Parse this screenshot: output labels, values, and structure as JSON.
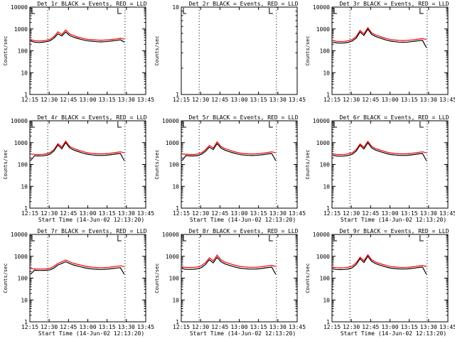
{
  "chart_data": [
    {
      "type": "line",
      "title": "Det 1r BLACK = Events, RED = LLD",
      "has_data": true,
      "profile": "A",
      "ylabel": "Counts/sec",
      "xlabel": "",
      "x_ticks": [
        "12:15",
        "12:30",
        "12:45",
        "13:00",
        "13:15",
        "13:30",
        "13:45"
      ],
      "y_ticks": [
        "1",
        "10",
        "100",
        "1000",
        "10000"
      ],
      "ylim": [
        1,
        10000
      ],
      "yscale": "log",
      "markers_after_ticks": [
        1,
        5
      ],
      "series": [
        {
          "color": "#000000",
          "values": [
            280,
            250,
            240,
            245,
            260,
            290,
            380,
            600,
            480,
            720,
            500,
            420,
            370,
            330,
            300,
            280,
            270,
            260,
            255,
            260,
            270,
            285,
            300,
            320,
            250
          ]
        },
        {
          "color": "#ff0000",
          "values": [
            330,
            290,
            280,
            285,
            300,
            340,
            450,
            740,
            560,
            900,
            600,
            500,
            430,
            390,
            350,
            330,
            320,
            310,
            305,
            310,
            320,
            335,
            350,
            375,
            340
          ]
        }
      ]
    },
    {
      "type": "line",
      "title": "Det 2r BLACK = Events, RED = LLD",
      "has_data": false,
      "profile": "none",
      "ylabel": "Counts/sec",
      "xlabel": "",
      "x_ticks": [
        "12:15",
        "12:30",
        "12:45",
        "13:00",
        "13:15",
        "13:30",
        "13:45"
      ],
      "y_ticks": [
        "1",
        "10"
      ],
      "ylim": [
        1,
        10
      ],
      "yscale": "log",
      "markers_after_ticks": [
        1,
        5
      ],
      "series": []
    },
    {
      "type": "line",
      "title": "Det 3r BLACK = Events, RED = LLD",
      "has_data": true,
      "profile": "A",
      "ylabel": "Counts/sec",
      "xlabel": "",
      "x_ticks": [
        "12:15",
        "12:30",
        "12:45",
        "13:00",
        "13:15",
        "13:30",
        "13:45"
      ],
      "y_ticks": [
        "1",
        "10",
        "100",
        "1000",
        "10000"
      ],
      "ylim": [
        1,
        10000
      ],
      "yscale": "log",
      "markers_after_ticks": [
        1,
        5
      ],
      "series": [
        {
          "color": "#000000",
          "values": [
            250,
            230,
            225,
            230,
            245,
            280,
            380,
            720,
            500,
            980,
            560,
            450,
            390,
            340,
            300,
            275,
            260,
            250,
            245,
            250,
            260,
            275,
            290,
            300,
            140
          ]
        },
        {
          "color": "#ff0000",
          "values": [
            300,
            270,
            265,
            270,
            290,
            330,
            450,
            860,
            600,
            1150,
            660,
            530,
            460,
            400,
            355,
            325,
            310,
            300,
            295,
            300,
            310,
            325,
            345,
            360,
            330
          ]
        }
      ]
    },
    {
      "type": "line",
      "title": "Det 4r BLACK = Events, RED = LLD",
      "has_data": true,
      "profile": "A",
      "ylabel": "Counts/sec",
      "xlabel": "Start Time (14-Jun-02 12:13:20)",
      "x_ticks": [
        "12:15",
        "12:30",
        "12:45",
        "13:00",
        "13:15",
        "13:30",
        "13:45"
      ],
      "y_ticks": [
        "1",
        "10",
        "100",
        "1000",
        "10000"
      ],
      "ylim": [
        1,
        10000
      ],
      "yscale": "log",
      "markers_after_ticks": [
        1,
        5
      ],
      "series": [
        {
          "color": "#000000",
          "values": [
            150,
            250,
            245,
            250,
            260,
            300,
            420,
            780,
            520,
            1000,
            580,
            460,
            400,
            350,
            310,
            285,
            270,
            262,
            258,
            262,
            272,
            288,
            305,
            320,
            150
          ]
        },
        {
          "color": "#ff0000",
          "values": [
            300,
            290,
            285,
            290,
            305,
            350,
            490,
            900,
            620,
            1180,
            680,
            540,
            470,
            410,
            365,
            335,
            320,
            310,
            305,
            310,
            320,
            338,
            358,
            380,
            340
          ]
        }
      ]
    },
    {
      "type": "line",
      "title": "Det 5r BLACK = Events, RED = LLD",
      "has_data": true,
      "profile": "A",
      "ylabel": "Counts/sec",
      "xlabel": "Start Time (14-Jun-02 12:13:20)",
      "x_ticks": [
        "12:15",
        "12:30",
        "12:45",
        "13:00",
        "13:15",
        "13:30",
        "13:45"
      ],
      "y_ticks": [
        "1",
        "10",
        "100",
        "1000",
        "10000"
      ],
      "ylim": [
        1,
        10000
      ],
      "yscale": "log",
      "markers_after_ticks": [
        1,
        5
      ],
      "series": [
        {
          "color": "#000000",
          "values": [
            150,
            255,
            245,
            245,
            255,
            295,
            400,
            620,
            480,
            900,
            560,
            450,
            390,
            345,
            305,
            282,
            268,
            260,
            256,
            260,
            270,
            286,
            302,
            318,
            150
          ]
        },
        {
          "color": "#ff0000",
          "values": [
            300,
            295,
            285,
            285,
            300,
            345,
            470,
            740,
            570,
            1080,
            660,
            530,
            460,
            405,
            360,
            332,
            318,
            308,
            304,
            308,
            318,
            336,
            355,
            378,
            340
          ]
        }
      ]
    },
    {
      "type": "line",
      "title": "Det 6r BLACK = Events, RED = LLD",
      "has_data": true,
      "profile": "A",
      "ylabel": "Counts/sec",
      "xlabel": "Start Time (14-Jun-02 12:13:20)",
      "x_ticks": [
        "12:15",
        "12:30",
        "12:45",
        "13:00",
        "13:15",
        "13:30",
        "13:45"
      ],
      "y_ticks": [
        "1",
        "10",
        "100",
        "1000",
        "10000"
      ],
      "ylim": [
        1,
        10000
      ],
      "yscale": "log",
      "markers_after_ticks": [
        1,
        5
      ],
      "series": [
        {
          "color": "#000000",
          "values": [
            260,
            245,
            240,
            245,
            258,
            295,
            410,
            760,
            510,
            980,
            570,
            455,
            395,
            348,
            308,
            284,
            270,
            262,
            258,
            262,
            272,
            288,
            305,
            320,
            150
          ]
        },
        {
          "color": "#ff0000",
          "values": [
            310,
            290,
            285,
            290,
            305,
            345,
            480,
            880,
            610,
            1150,
            670,
            535,
            465,
            408,
            362,
            334,
            320,
            310,
            305,
            310,
            320,
            338,
            358,
            380,
            340
          ]
        }
      ]
    },
    {
      "type": "line",
      "title": "Det 7r BLACK = Events, RED = LLD",
      "has_data": true,
      "profile": "B",
      "ylabel": "Counts/sec",
      "xlabel": "Start Time (14-Jun-02 12:13:20)",
      "x_ticks": [
        "12:15",
        "12:30",
        "12:45",
        "13:00",
        "13:15",
        "13:30",
        "13:45"
      ],
      "y_ticks": [
        "1",
        "10",
        "100",
        "1000",
        "10000"
      ],
      "ylim": [
        1,
        10000
      ],
      "yscale": "log",
      "markers_after_ticks": [
        1,
        5
      ],
      "series": [
        {
          "color": "#000000",
          "values": [
            150,
            230,
            225,
            225,
            228,
            240,
            290,
            400,
            470,
            560,
            470,
            400,
            360,
            325,
            295,
            275,
            262,
            255,
            250,
            255,
            262,
            275,
            290,
            300,
            150
          ]
        },
        {
          "color": "#ff0000",
          "values": [
            270,
            265,
            260,
            260,
            265,
            285,
            350,
            480,
            560,
            680,
            560,
            480,
            430,
            390,
            355,
            330,
            315,
            305,
            300,
            305,
            315,
            330,
            348,
            365,
            340
          ]
        }
      ]
    },
    {
      "type": "line",
      "title": "Det 8r BLACK = Events, RED = LLD",
      "has_data": true,
      "profile": "A",
      "ylabel": "Counts/sec",
      "xlabel": "Start Time (14-Jun-02 12:13:20)",
      "x_ticks": [
        "12:15",
        "12:30",
        "12:45",
        "13:00",
        "13:15",
        "13:30",
        "13:45"
      ],
      "y_ticks": [
        "1",
        "10",
        "100",
        "1000",
        "10000"
      ],
      "ylim": [
        1,
        10000
      ],
      "yscale": "log",
      "markers_after_ticks": [
        1,
        5
      ],
      "series": [
        {
          "color": "#000000",
          "values": [
            270,
            255,
            250,
            255,
            268,
            305,
            420,
            700,
            500,
            900,
            560,
            450,
            392,
            346,
            306,
            283,
            270,
            262,
            258,
            262,
            272,
            288,
            305,
            320,
            150
          ]
        },
        {
          "color": "#ff0000",
          "values": [
            330,
            310,
            305,
            310,
            325,
            370,
            510,
            860,
            620,
            1130,
            680,
            545,
            475,
            418,
            370,
            342,
            326,
            316,
            311,
            316,
            326,
            344,
            364,
            385,
            340
          ]
        }
      ]
    },
    {
      "type": "line",
      "title": "Det 9r BLACK = Events, RED = LLD",
      "has_data": true,
      "profile": "A",
      "ylabel": "Counts/sec",
      "xlabel": "Start Time (14-Jun-02 12:13:20)",
      "x_ticks": [
        "12:15",
        "12:30",
        "12:45",
        "13:00",
        "13:15",
        "13:30",
        "13:45"
      ],
      "y_ticks": [
        "1",
        "10",
        "100",
        "1000",
        "10000"
      ],
      "ylim": [
        1,
        10000
      ],
      "yscale": "log",
      "markers_after_ticks": [
        1,
        5
      ],
      "series": [
        {
          "color": "#000000",
          "values": [
            265,
            250,
            245,
            250,
            262,
            300,
            420,
            780,
            520,
            1000,
            580,
            460,
            398,
            350,
            310,
            286,
            272,
            264,
            260,
            264,
            274,
            290,
            307,
            322,
            150
          ]
        },
        {
          "color": "#ff0000",
          "values": [
            320,
            300,
            295,
            300,
            315,
            360,
            500,
            910,
            630,
            1180,
            690,
            545,
            472,
            414,
            366,
            337,
            322,
            312,
            307,
            312,
            322,
            340,
            360,
            382,
            340
          ]
        }
      ]
    }
  ]
}
